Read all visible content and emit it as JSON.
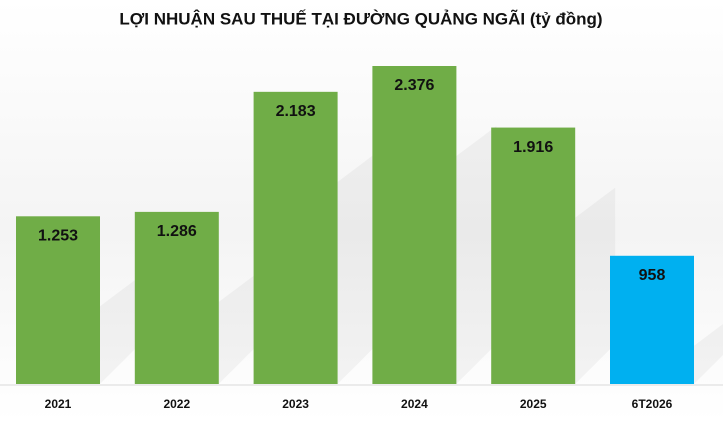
{
  "chart_data": {
    "type": "bar",
    "title": "LỢI NHUẬN SAU THUẾ TẠI ĐƯỜNG QUẢNG NGÃI (tỷ đồng)",
    "categories": [
      "2021",
      "2022",
      "2023",
      "2024",
      "2025",
      "6T2026"
    ],
    "values": [
      1253,
      1286,
      2183,
      2376,
      1916,
      958
    ],
    "value_labels": [
      "1.253",
      "1.286",
      "2.183",
      "2.376",
      "1.916",
      "958"
    ],
    "colors": [
      "#70ad47",
      "#70ad47",
      "#70ad47",
      "#70ad47",
      "#70ad47",
      "#00b0f0"
    ]
  }
}
